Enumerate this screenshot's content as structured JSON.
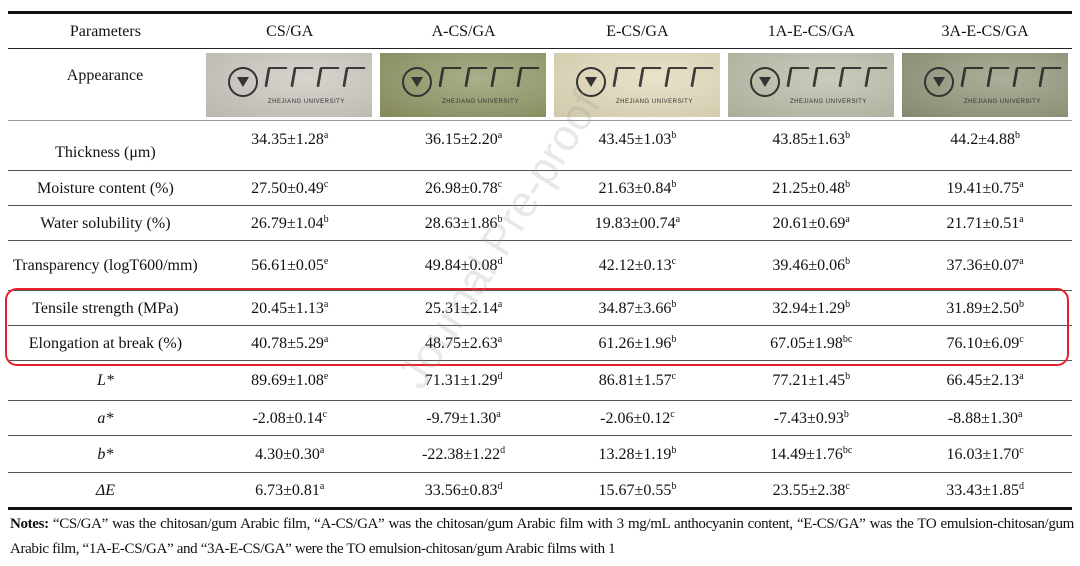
{
  "headers": [
    "Parameters",
    "CS/GA",
    "A-CS/GA",
    "E-CS/GA",
    "1A-E-CS/GA",
    "3A-E-CS/GA"
  ],
  "appearance": {
    "label": "Appearance",
    "logo_text": "浙江大学 ZHEJIANG UNIVERSITY",
    "logo_caption": "ZHEJIANG UNIVERSITY",
    "photo_colors": [
      "#c9c6bd",
      "#8f9463",
      "#e1d9b8",
      "#b8bca6",
      "#8f9578"
    ]
  },
  "rows": [
    {
      "label": "Thickness (μm)",
      "italic": false,
      "values": [
        {
          "v": "34.35±1.28",
          "s": "a"
        },
        {
          "v": "36.15±2.20",
          "s": "a"
        },
        {
          "v": "43.45±1.03",
          "s": "b"
        },
        {
          "v": "43.85±1.63",
          "s": "b"
        },
        {
          "v": "44.2±4.88",
          "s": "b"
        }
      ]
    },
    {
      "label": "Moisture content (%)",
      "italic": false,
      "values": [
        {
          "v": "27.50±0.49",
          "s": "c"
        },
        {
          "v": "26.98±0.78",
          "s": "c"
        },
        {
          "v": "21.63±0.84",
          "s": "b"
        },
        {
          "v": "21.25±0.48",
          "s": "b"
        },
        {
          "v": "19.41±0.75",
          "s": "a"
        }
      ]
    },
    {
      "label": "Water solubility (%)",
      "italic": false,
      "values": [
        {
          "v": "26.79±1.04",
          "s": "b"
        },
        {
          "v": "28.63±1.86",
          "s": "b"
        },
        {
          "v": "19.83±00.74",
          "s": "a"
        },
        {
          "v": "20.61±0.69",
          "s": "a"
        },
        {
          "v": "21.71±0.51",
          "s": "a"
        }
      ]
    },
    {
      "label": "Transparency (logT600/mm)",
      "italic": false,
      "values": [
        {
          "v": "56.61±0.05",
          "s": "e"
        },
        {
          "v": "49.84±0.08",
          "s": "d"
        },
        {
          "v": "42.12±0.13",
          "s": "c"
        },
        {
          "v": "39.46±0.06",
          "s": "b"
        },
        {
          "v": "37.36±0.07",
          "s": "a"
        }
      ]
    },
    {
      "label": "Tensile strength (MPa)",
      "italic": false,
      "values": [
        {
          "v": "20.45±1.13",
          "s": "a"
        },
        {
          "v": "25.31±2.14",
          "s": "a"
        },
        {
          "v": "34.87±3.66",
          "s": "b"
        },
        {
          "v": "32.94±1.29",
          "s": "b"
        },
        {
          "v": "31.89±2.50",
          "s": "b"
        }
      ]
    },
    {
      "label": "Elongation at break (%)",
      "italic": false,
      "values": [
        {
          "v": "40.78±5.29",
          "s": "a"
        },
        {
          "v": "48.75±2.63",
          "s": "a"
        },
        {
          "v": "61.26±1.96",
          "s": "b"
        },
        {
          "v": "67.05±1.98",
          "s": "bc"
        },
        {
          "v": "76.10±6.09",
          "s": "c"
        }
      ]
    },
    {
      "label": "L*",
      "italic": true,
      "values": [
        {
          "v": "89.69±1.08",
          "s": "e"
        },
        {
          "v": "71.31±1.29",
          "s": "d"
        },
        {
          "v": "86.81±1.57",
          "s": "c"
        },
        {
          "v": "77.21±1.45",
          "s": "b"
        },
        {
          "v": "66.45±2.13",
          "s": "a"
        }
      ]
    },
    {
      "label": "a*",
      "italic": true,
      "values": [
        {
          "v": "-2.08±0.14",
          "s": "c"
        },
        {
          "v": "-9.79±1.30",
          "s": "a"
        },
        {
          "v": "-2.06±0.12",
          "s": "c"
        },
        {
          "v": "-7.43±0.93",
          "s": "b"
        },
        {
          "v": "-8.88±1.30",
          "s": "a"
        }
      ]
    },
    {
      "label": "b*",
      "italic": true,
      "values": [
        {
          "v": "4.30±0.30",
          "s": "a"
        },
        {
          "v": "-22.38±1.22",
          "s": "d"
        },
        {
          "v": "13.28±1.19",
          "s": "b"
        },
        {
          "v": "14.49±1.76",
          "s": "bc"
        },
        {
          "v": "16.03±1.70",
          "s": "c"
        }
      ]
    },
    {
      "label": "ΔE",
      "italic": true,
      "values": [
        {
          "v": "6.73±0.81",
          "s": "a"
        },
        {
          "v": "33.56±0.83",
          "s": "d"
        },
        {
          "v": "15.67±0.55",
          "s": "b"
        },
        {
          "v": "23.55±2.38",
          "s": "c"
        },
        {
          "v": "33.43±1.85",
          "s": "d"
        }
      ]
    }
  ],
  "highlight_color": "#e5202b",
  "watermark": "Journal Pre-proof",
  "notes": {
    "label": "Notes:",
    "text": " “CS/GA” was the chitosan/gum Arabic film, “A-CS/GA” was the chitosan/gum Arabic film with 3 mg/mL anthocyanin content, “E-CS/GA” was the TO emulsion-chitosan/gum Arabic film, “1A-E-CS/GA” and “3A-E-CS/GA” were the TO emulsion-chitosan/gum Arabic films with 1"
  }
}
